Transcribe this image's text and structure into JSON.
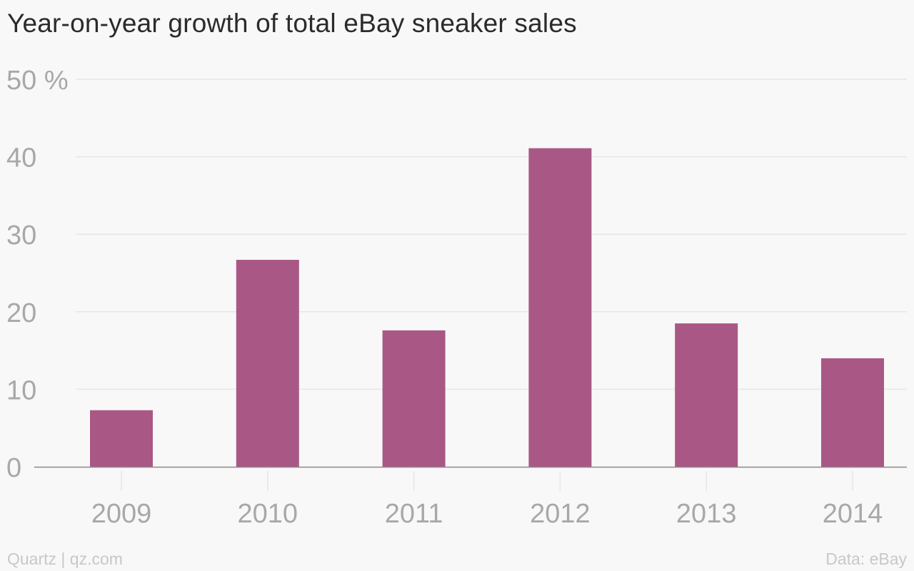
{
  "colors": {
    "background": "#f8f8f8",
    "bar": "#a95886",
    "grid": "#e6e6e6",
    "axis": "#8a8a8a",
    "tick_text": "#a8a8a8",
    "title_text": "#2b2b2b",
    "footer_text": "#c8c8c8"
  },
  "footer": {
    "source_left": "Quartz | qz.com",
    "source_right": "Data: eBay"
  },
  "chart_data": {
    "type": "bar",
    "title": "Year-on-year growth of total eBay sneaker sales",
    "xlabel": "",
    "ylabel": "",
    "categories": [
      "2009",
      "2010",
      "2011",
      "2012",
      "2013",
      "2014"
    ],
    "values": [
      7.3,
      26.7,
      17.6,
      41.1,
      18.5,
      14.0
    ],
    "ylim": [
      0,
      50
    ],
    "yticks": [
      0,
      10,
      20,
      30,
      40,
      50
    ],
    "ytick_labels": [
      "0",
      "10",
      "20",
      "30",
      "40",
      "50 %"
    ],
    "grid": true,
    "legend": "none"
  }
}
